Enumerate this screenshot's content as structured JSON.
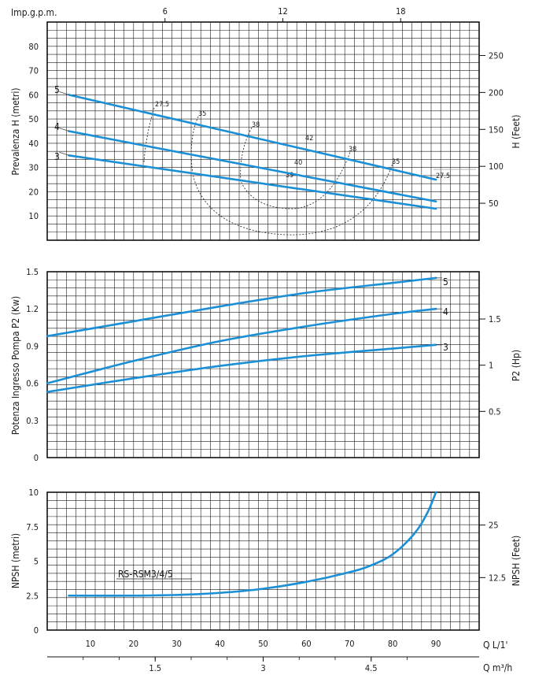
{
  "chart_data": [
    {
      "type": "line",
      "panel": "head",
      "ylabel": "Prevalenza H (metri)",
      "ylabel_right": "H (Feet)",
      "xlabel_top": "Imp.g.p.m.",
      "x_top_ticks": [
        6,
        12,
        18
      ],
      "xlim": [
        0,
        100
      ],
      "ylim": [
        0,
        90
      ],
      "y_ticks": [
        10,
        20,
        30,
        40,
        50,
        60,
        70,
        80
      ],
      "y_right_ticks": [
        50,
        100,
        150,
        200,
        250
      ],
      "grid": true,
      "series": [
        {
          "name": "5",
          "x": [
            5,
            90
          ],
          "y": [
            60,
            25
          ]
        },
        {
          "name": "4",
          "x": [
            5,
            90
          ],
          "y": [
            45,
            16
          ]
        },
        {
          "name": "3",
          "x": [
            5,
            90
          ],
          "y": [
            35,
            13
          ]
        }
      ],
      "efficiency_labels": [
        "27.5",
        "35",
        "38",
        "42",
        "38",
        "35",
        "27.5",
        "40",
        "39"
      ]
    },
    {
      "type": "line",
      "panel": "power",
      "ylabel": "Potenza Ingresso Pompa P2 (Kw)",
      "ylabel_right": "P2 (Hp)",
      "xlim": [
        0,
        100
      ],
      "ylim": [
        0,
        1.5
      ],
      "y_ticks": [
        "0",
        "0.3",
        "0.6",
        "0.9",
        "1.2",
        "1.5"
      ],
      "y_right_ticks": [
        "0.5",
        "1",
        "1.5"
      ],
      "grid": true,
      "series": [
        {
          "name": "5",
          "x": [
            0,
            20,
            40,
            60,
            80,
            90
          ],
          "y": [
            0.98,
            1.1,
            1.22,
            1.33,
            1.41,
            1.45
          ]
        },
        {
          "name": "4",
          "x": [
            0,
            20,
            40,
            60,
            80,
            90
          ],
          "y": [
            0.6,
            0.78,
            0.94,
            1.06,
            1.16,
            1.2
          ]
        },
        {
          "name": "3",
          "x": [
            0,
            20,
            40,
            60,
            80,
            90
          ],
          "y": [
            0.53,
            0.64,
            0.74,
            0.82,
            0.88,
            0.91
          ]
        }
      ]
    },
    {
      "type": "line",
      "panel": "npsh",
      "ylabel": "NPSH (metri)",
      "ylabel_right": "NPSH (Feet)",
      "xlabel": "Q L/1'",
      "xlabel_secondary": "Q m³/h",
      "x_ticks": [
        10,
        20,
        30,
        40,
        50,
        60,
        70,
        80,
        90
      ],
      "x_secondary_ticks": [
        "1.5",
        "3",
        "4.5"
      ],
      "xlim": [
        0,
        100
      ],
      "ylim": [
        0,
        10
      ],
      "y_ticks": [
        "0",
        "2.5",
        "5",
        "7.5",
        "10"
      ],
      "y_right_ticks": [
        "12.5",
        "25"
      ],
      "grid": true,
      "series": [
        {
          "name": "RS-RSM3/4/5",
          "x": [
            5,
            20,
            30,
            40,
            50,
            60,
            70,
            75,
            80,
            85,
            88,
            90
          ],
          "y": [
            2.5,
            2.5,
            2.55,
            2.7,
            3.0,
            3.5,
            4.2,
            4.7,
            5.5,
            7.0,
            8.5,
            10
          ]
        }
      ]
    }
  ]
}
